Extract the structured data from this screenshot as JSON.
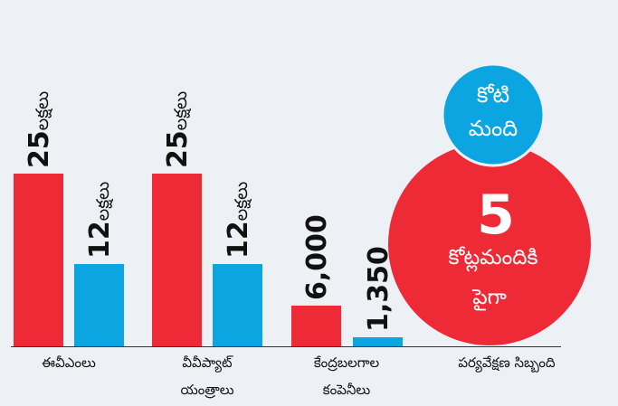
{
  "groups": [
    {
      "label": [
        "ఈవీఎంలు"
      ],
      "items": [
        {
          "number": "25",
          "unit": "లక్షలు"
        },
        {
          "number": "12",
          "unit": "లక్షలు"
        }
      ]
    },
    {
      "label": [
        "వీవీప్యాట్",
        "యంత్రాలు"
      ],
      "items": [
        {
          "number": "25",
          "unit": "లక్షలు"
        },
        {
          "number": "12",
          "unit": "లక్షలు"
        }
      ]
    },
    {
      "label": [
        "కేంద్రబలగాల",
        "కంపెనీలు"
      ],
      "items": [
        {
          "number": "6,000"
        },
        {
          "number": "1,350"
        }
      ]
    },
    {
      "label": [
        "పర్యవేక్షణ సిబ్బంది"
      ]
    }
  ],
  "blue_circle": [
    "కోటి",
    "మంది"
  ],
  "red_circle": {
    "number": "5",
    "lines": [
      "కోట్లమందికి",
      "పైగా"
    ]
  }
}
